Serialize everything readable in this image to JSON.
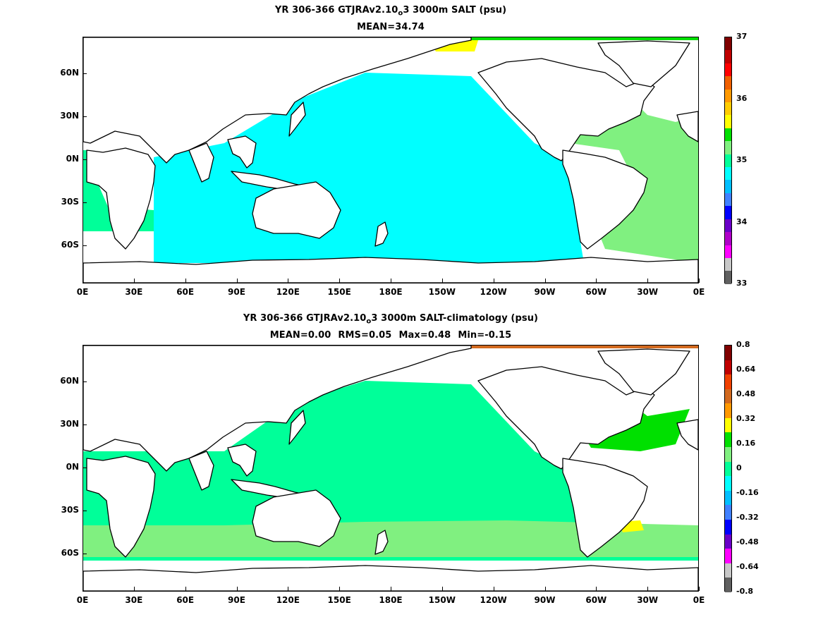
{
  "panel1": {
    "title_prefix": "YR 306-366 GTJRAv2.10",
    "title_sub": "o",
    "title_suffix": "3 3000m SALT (psu)",
    "mean": "MEAN=34.74",
    "colorbar_labels": [
      "37",
      "36",
      "35",
      "34",
      "33"
    ],
    "colorbar_colors": [
      "#800000",
      "#c00000",
      "#ff0000",
      "#f06000",
      "#ff9900",
      "#ffcc00",
      "#ffff00",
      "#00e000",
      "#80f080",
      "#00ff99",
      "#00ffff",
      "#00bfff",
      "#4080ff",
      "#0000ff",
      "#6a00c8",
      "#b000c8",
      "#ff00ff",
      "#c8c8c8",
      "#606060"
    ],
    "field_colors": {
      "fresh": "#00ffff",
      "near": "#00ff99",
      "salty": "#80f080",
      "arctic": "#00e000",
      "high": "#ffff00"
    }
  },
  "panel2": {
    "title_prefix": "YR 306-366 GTJRAv2.10",
    "title_sub": "o",
    "title_suffix": "3 3000m SALT-climatology (psu)",
    "stats": [
      "MEAN=0.00",
      "RMS=0.05",
      "Max=0.48",
      "Min=-0.15"
    ],
    "colorbar_labels": [
      "0.8",
      "0.64",
      "0.48",
      "0.32",
      "0.16",
      "0",
      "-0.16",
      "-0.32",
      "-0.48",
      "-0.64",
      "-0.8"
    ],
    "colorbar_colors": [
      "#800000",
      "#c00000",
      "#f04000",
      "#d2691e",
      "#ff9900",
      "#ffff00",
      "#00e000",
      "#80f080",
      "#00ff99",
      "#00ffff",
      "#00bfff",
      "#4080ff",
      "#0000ff",
      "#6a00c8",
      "#ff00ff",
      "#c8c8c8",
      "#606060"
    ],
    "field_colors": {
      "neutral": "#00ff99",
      "positive": "#80f080",
      "strong": "#00e000",
      "peak": "#ffff00",
      "arctic": "#d2691e"
    }
  },
  "axes": {
    "lon_ticks": [
      "0E",
      "30E",
      "60E",
      "90E",
      "120E",
      "150E",
      "180E",
      "150W",
      "120W",
      "90W",
      "60W",
      "30W",
      "0E"
    ],
    "lat_ticks": [
      "60N",
      "30N",
      "0N",
      "30S",
      "60S"
    ]
  }
}
